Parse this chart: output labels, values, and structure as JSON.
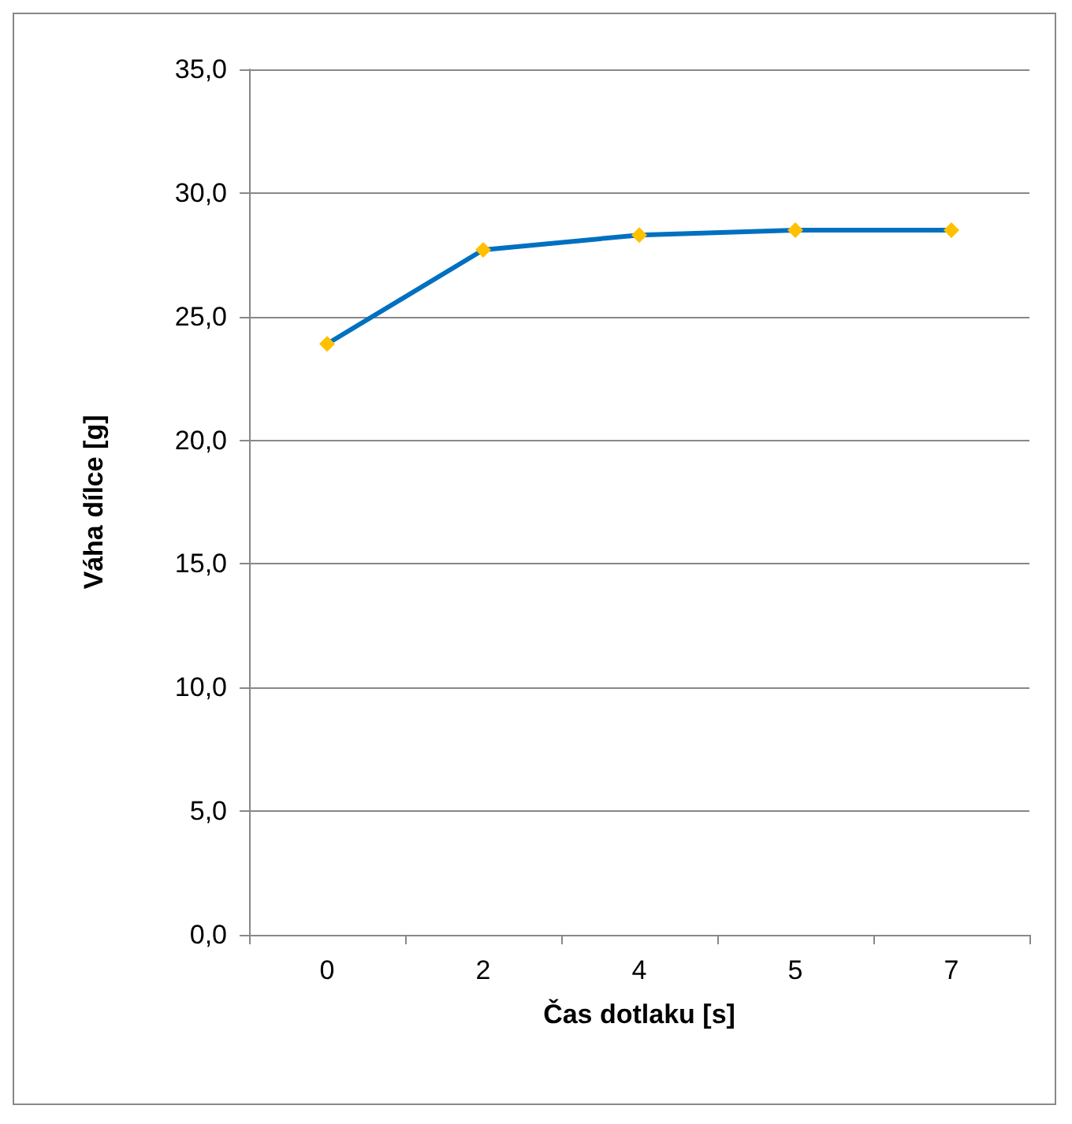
{
  "chart_data": {
    "type": "line",
    "xlabel": "Čas dotlaku [s]",
    "ylabel": "Váha dílce [g]",
    "categories": [
      "0",
      "2",
      "4",
      "5",
      "7"
    ],
    "series": [
      {
        "color": "#0070c0",
        "values": [
          23.9,
          27.7,
          28.3,
          28.5,
          28.5
        ]
      }
    ],
    "ylim": [
      0,
      35
    ],
    "yticks": [
      {
        "value": 0,
        "label": "0,0"
      },
      {
        "value": 5,
        "label": "5,0"
      },
      {
        "value": 10,
        "label": "10,0"
      },
      {
        "value": 15,
        "label": "15,0"
      },
      {
        "value": 20,
        "label": "20,0"
      },
      {
        "value": 25,
        "label": "25,0"
      },
      {
        "value": 30,
        "label": "30,0"
      },
      {
        "value": 35,
        "label": "35,0"
      }
    ],
    "grid": "y",
    "marker": "diamond",
    "line_style": "solid"
  }
}
